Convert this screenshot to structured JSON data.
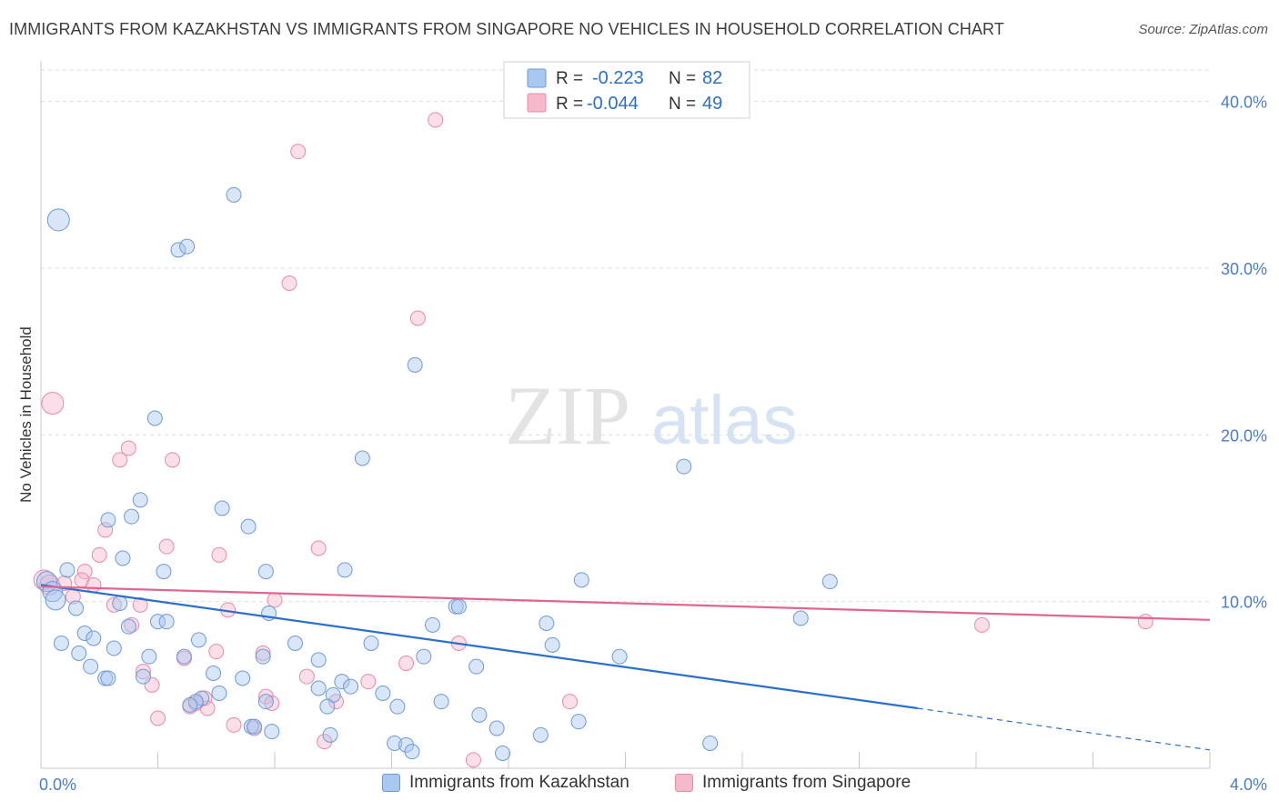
{
  "header": {
    "title": "IMMIGRANTS FROM KAZAKHSTAN VS IMMIGRANTS FROM SINGAPORE NO VEHICLES IN HOUSEHOLD CORRELATION CHART",
    "source": "Source: ZipAtlas.com"
  },
  "watermark": {
    "zip": "ZIP",
    "atlas": "atlas"
  },
  "legend_top": {
    "rows": [
      {
        "r_label": "R =",
        "r_value": "-0.223",
        "n_label": "N =",
        "n_value": "82"
      },
      {
        "r_label": "R =",
        "r_value": "-0.044",
        "n_label": "N =",
        "n_value": "49"
      }
    ]
  },
  "legend_bottom": {
    "items": [
      "Immigrants from Kazakhstan",
      "Immigrants from Singapore"
    ]
  },
  "colors": {
    "kazakhstan_fill": "#a9c8ef",
    "kazakhstan_stroke": "#6d9ad6",
    "kazakhstan_line": "#2b6fcc",
    "singapore_fill": "#f6b9cb",
    "singapore_stroke": "#e88aa8",
    "singapore_line": "#e06690",
    "axis_label": "#4a7cc9",
    "grid": "#dddddd"
  },
  "chart_data": {
    "type": "scatter",
    "title": "IMMIGRANTS FROM KAZAKHSTAN VS IMMIGRANTS FROM SINGAPORE NO VEHICLES IN HOUSEHOLD CORRELATION CHART",
    "xlabel": "",
    "ylabel": "No Vehicles in Household",
    "xlim": [
      0,
      4.0
    ],
    "ylim": [
      0,
      42
    ],
    "x_unit": "%",
    "y_unit": "%",
    "x_tick_labels": [
      "0.0%",
      "4.0%"
    ],
    "y_ticks": [
      10,
      20,
      30,
      40
    ],
    "y_tick_labels": [
      "10.0%",
      "20.0%",
      "30.0%",
      "40.0%"
    ],
    "grid": true,
    "legend_position": "top-center",
    "series": [
      {
        "name": "Immigrants from Kazakhstan",
        "r": -0.223,
        "n": 82,
        "trend": {
          "x0": 0.0,
          "y0": 11.0,
          "x1": 3.0,
          "y1": 3.6,
          "dash_to_x": 4.0,
          "dash_to_y": 1.1
        },
        "points": [
          [
            0.06,
            32.9,
            12
          ],
          [
            0.66,
            34.4,
            8
          ],
          [
            0.47,
            31.1,
            8
          ],
          [
            0.5,
            31.3,
            8
          ],
          [
            1.28,
            24.2,
            8
          ],
          [
            0.39,
            21.0,
            8
          ],
          [
            1.1,
            18.6,
            8
          ],
          [
            2.2,
            18.1,
            8
          ],
          [
            0.34,
            16.1,
            8
          ],
          [
            0.23,
            14.9,
            8
          ],
          [
            0.31,
            15.1,
            8
          ],
          [
            0.62,
            15.6,
            8
          ],
          [
            0.71,
            14.5,
            8
          ],
          [
            0.28,
            12.6,
            8
          ],
          [
            0.42,
            11.8,
            8
          ],
          [
            0.77,
            11.8,
            8
          ],
          [
            1.04,
            11.9,
            8
          ],
          [
            1.85,
            11.3,
            8
          ],
          [
            2.7,
            11.2,
            8
          ],
          [
            0.02,
            11.2,
            11
          ],
          [
            0.04,
            10.6,
            11
          ],
          [
            0.05,
            10.1,
            11
          ],
          [
            0.09,
            11.9,
            8
          ],
          [
            0.27,
            9.9,
            8
          ],
          [
            0.12,
            9.6,
            8
          ],
          [
            0.78,
            9.3,
            8
          ],
          [
            1.42,
            9.7,
            8
          ],
          [
            1.43,
            9.7,
            8
          ],
          [
            2.6,
            9.0,
            8
          ],
          [
            0.4,
            8.8,
            8
          ],
          [
            0.43,
            8.8,
            8
          ],
          [
            0.3,
            8.5,
            8
          ],
          [
            1.34,
            8.6,
            8
          ],
          [
            1.73,
            8.7,
            8
          ],
          [
            0.15,
            8.1,
            8
          ],
          [
            0.18,
            7.8,
            8
          ],
          [
            0.54,
            7.7,
            8
          ],
          [
            0.07,
            7.5,
            8
          ],
          [
            0.87,
            7.5,
            8
          ],
          [
            1.13,
            7.5,
            8
          ],
          [
            1.75,
            7.4,
            8
          ],
          [
            0.25,
            7.2,
            8
          ],
          [
            0.13,
            6.9,
            8
          ],
          [
            0.37,
            6.7,
            8
          ],
          [
            0.49,
            6.7,
            8
          ],
          [
            0.76,
            6.7,
            8
          ],
          [
            0.95,
            6.5,
            8
          ],
          [
            1.31,
            6.7,
            8
          ],
          [
            1.98,
            6.7,
            8
          ],
          [
            0.17,
            6.1,
            8
          ],
          [
            1.49,
            6.1,
            8
          ],
          [
            0.59,
            5.7,
            8
          ],
          [
            0.35,
            5.5,
            8
          ],
          [
            0.22,
            5.4,
            8
          ],
          [
            0.23,
            5.4,
            8
          ],
          [
            0.69,
            5.4,
            8
          ],
          [
            0.95,
            4.8,
            8
          ],
          [
            1.03,
            5.2,
            8
          ],
          [
            1.06,
            4.9,
            8
          ],
          [
            1.17,
            4.5,
            8
          ],
          [
            0.61,
            4.5,
            8
          ],
          [
            1.0,
            4.4,
            8
          ],
          [
            0.55,
            4.2,
            8
          ],
          [
            0.53,
            4.0,
            8
          ],
          [
            0.77,
            4.0,
            8
          ],
          [
            1.37,
            4.0,
            8
          ],
          [
            0.51,
            3.8,
            8
          ],
          [
            0.98,
            3.7,
            8
          ],
          [
            1.22,
            3.7,
            8
          ],
          [
            1.5,
            3.2,
            8
          ],
          [
            1.84,
            2.8,
            8
          ],
          [
            0.72,
            2.5,
            8
          ],
          [
            0.79,
            2.2,
            8
          ],
          [
            1.56,
            2.4,
            8
          ],
          [
            0.99,
            2.0,
            8
          ],
          [
            1.71,
            2.0,
            8
          ],
          [
            1.21,
            1.5,
            8
          ],
          [
            1.25,
            1.4,
            8
          ],
          [
            2.29,
            1.5,
            8
          ],
          [
            1.27,
            1.0,
            8
          ],
          [
            1.58,
            0.9,
            8
          ],
          [
            0.73,
            2.5,
            8
          ]
        ]
      },
      {
        "name": "Immigrants from Singapore",
        "r": -0.044,
        "n": 49,
        "trend": {
          "x0": 0.0,
          "y0": 10.9,
          "x1": 4.0,
          "y1": 8.9
        },
        "points": [
          [
            1.35,
            38.9,
            8
          ],
          [
            0.88,
            37.0,
            8
          ],
          [
            0.85,
            29.1,
            8
          ],
          [
            1.29,
            27.0,
            8
          ],
          [
            0.04,
            21.9,
            12
          ],
          [
            0.3,
            19.2,
            8
          ],
          [
            0.27,
            18.5,
            8
          ],
          [
            0.45,
            18.5,
            8
          ],
          [
            0.22,
            14.3,
            8
          ],
          [
            0.43,
            13.3,
            8
          ],
          [
            0.95,
            13.2,
            8
          ],
          [
            0.2,
            12.8,
            8
          ],
          [
            0.61,
            12.8,
            8
          ],
          [
            0.15,
            11.8,
            8
          ],
          [
            0.01,
            11.3,
            11
          ],
          [
            0.03,
            11.0,
            11
          ],
          [
            0.08,
            11.1,
            8
          ],
          [
            0.14,
            11.3,
            8
          ],
          [
            0.18,
            11.0,
            8
          ],
          [
            0.11,
            10.3,
            8
          ],
          [
            0.8,
            10.1,
            8
          ],
          [
            0.25,
            9.8,
            8
          ],
          [
            0.34,
            9.8,
            8
          ],
          [
            0.64,
            9.5,
            8
          ],
          [
            0.31,
            8.6,
            8
          ],
          [
            3.22,
            8.6,
            8
          ],
          [
            3.78,
            8.8,
            8
          ],
          [
            1.43,
            7.5,
            8
          ],
          [
            0.6,
            7.0,
            8
          ],
          [
            0.76,
            6.9,
            8
          ],
          [
            0.49,
            6.6,
            8
          ],
          [
            1.25,
            6.3,
            8
          ],
          [
            0.35,
            5.8,
            8
          ],
          [
            0.91,
            5.5,
            8
          ],
          [
            0.38,
            5.0,
            8
          ],
          [
            1.12,
            5.2,
            8
          ],
          [
            0.77,
            4.3,
            8
          ],
          [
            0.56,
            4.2,
            8
          ],
          [
            1.01,
            4.0,
            8
          ],
          [
            0.79,
            3.9,
            8
          ],
          [
            1.81,
            4.0,
            8
          ],
          [
            0.51,
            3.7,
            8
          ],
          [
            0.57,
            3.6,
            8
          ],
          [
            0.4,
            3.0,
            8
          ],
          [
            0.66,
            2.6,
            8
          ],
          [
            0.73,
            2.4,
            8
          ],
          [
            0.97,
            1.6,
            8
          ],
          [
            1.48,
            0.5,
            8
          ],
          [
            0.53,
            3.9,
            8
          ]
        ]
      }
    ]
  }
}
